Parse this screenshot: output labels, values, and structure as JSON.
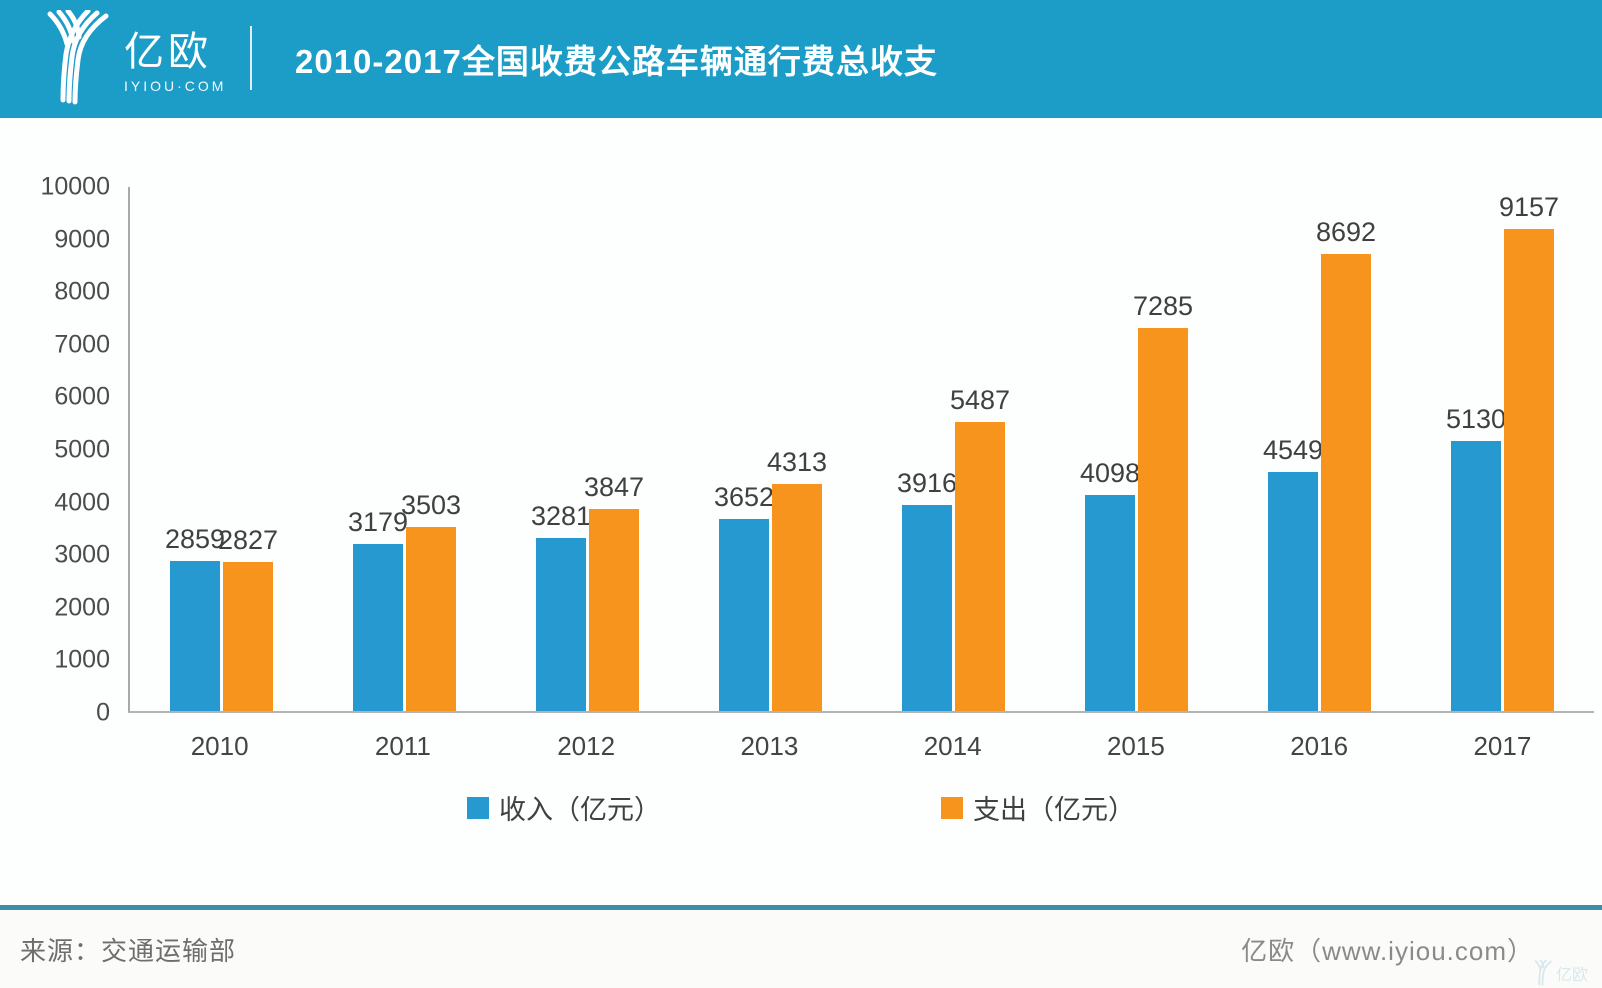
{
  "header": {
    "brand_name": "亿欧",
    "brand_domain": "IYIOU·COM",
    "title": "2010-2017全国收费公路车辆通行费总收支"
  },
  "chart_data": {
    "type": "bar",
    "title": "2010-2017全国收费公路车辆通行费总收支",
    "categories": [
      "2010",
      "2011",
      "2012",
      "2013",
      "2014",
      "2015",
      "2016",
      "2017"
    ],
    "series": [
      {
        "name": "收入（亿元）",
        "color": "#2699d1",
        "values": [
          2859,
          3179,
          3281,
          3652,
          3916,
          4098,
          4549,
          5130
        ]
      },
      {
        "name": "支出（亿元）",
        "color": "#f7941e",
        "values": [
          2827,
          3503,
          3847,
          4313,
          5487,
          7285,
          8692,
          9157
        ]
      }
    ],
    "ylim": [
      0,
      10000
    ],
    "ytick_step": 1000,
    "yticks": [
      "10000",
      "9000",
      "8000",
      "7000",
      "6000",
      "5000",
      "4000",
      "3000",
      "2000",
      "1000",
      "0"
    ],
    "grid": false,
    "data_labels": true,
    "legend_position": "bottom"
  },
  "footer": {
    "source": "来源：交通运输部",
    "brand": "亿欧（www.iyiou.com）",
    "watermark": "亿欧"
  },
  "colors": {
    "header_bg": "#1b9dc7",
    "income_bar": "#2699d1",
    "expense_bar": "#f7941e",
    "footer_divider": "#3d8ea6",
    "axis_line": "#a9a9a9",
    "label_text": "#404040"
  }
}
